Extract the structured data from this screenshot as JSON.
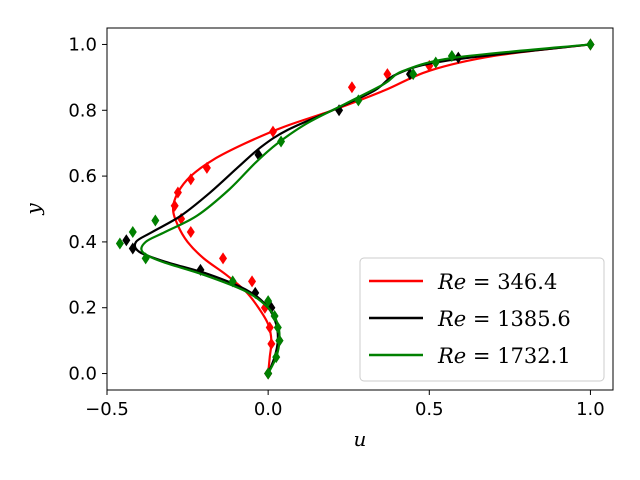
{
  "chart_data": {
    "type": "line",
    "xlabel": "u",
    "ylabel": "y",
    "xlim": [
      -0.5,
      1.07
    ],
    "ylim": [
      -0.05,
      1.05
    ],
    "xticks": [
      -0.5,
      0.0,
      0.5,
      1.0
    ],
    "xtick_labels": [
      "−0.5",
      "0.0",
      "0.5",
      "1.0"
    ],
    "yticks": [
      0.0,
      0.2,
      0.4,
      0.6,
      0.8,
      1.0
    ],
    "ytick_labels": [
      "0.0",
      "0.2",
      "0.4",
      "0.6",
      "0.8",
      "1.0"
    ],
    "grid": false,
    "legend_position": "lower-right",
    "series": [
      {
        "name": "Re = 346.4",
        "name_italic": "Re",
        "name_rest": " = 346.4",
        "color": "#ff0000",
        "curve": [
          [
            0,
            0
          ],
          [
            0.005,
            0.05
          ],
          [
            0.01,
            0.1
          ],
          [
            0,
            0.15
          ],
          [
            -0.03,
            0.2
          ],
          [
            -0.07,
            0.25
          ],
          [
            -0.13,
            0.3
          ],
          [
            -0.2,
            0.35
          ],
          [
            -0.25,
            0.4
          ],
          [
            -0.28,
            0.45
          ],
          [
            -0.295,
            0.5
          ],
          [
            -0.28,
            0.55
          ],
          [
            -0.24,
            0.6
          ],
          [
            -0.17,
            0.65
          ],
          [
            -0.07,
            0.7
          ],
          [
            0.05,
            0.75
          ],
          [
            0.2,
            0.8
          ],
          [
            0.36,
            0.86
          ],
          [
            0.5,
            0.92
          ],
          [
            0.7,
            0.965
          ],
          [
            1.0,
            1.0
          ]
        ],
        "markers": [
          [
            0.0,
            0.0
          ],
          [
            0.01,
            0.09
          ],
          [
            0.005,
            0.14
          ],
          [
            -0.01,
            0.2
          ],
          [
            -0.05,
            0.28
          ],
          [
            -0.14,
            0.35
          ],
          [
            -0.24,
            0.43
          ],
          [
            -0.27,
            0.47
          ],
          [
            -0.29,
            0.51
          ],
          [
            -0.28,
            0.55
          ],
          [
            -0.24,
            0.59
          ],
          [
            -0.19,
            0.625
          ],
          [
            0.015,
            0.735
          ],
          [
            0.26,
            0.87
          ],
          [
            0.37,
            0.91
          ],
          [
            0.5,
            0.935
          ],
          [
            1.0,
            1.0
          ]
        ]
      },
      {
        "name": "Re = 1385.6",
        "name_italic": "Re",
        "name_rest": " = 1385.6",
        "color": "#000000",
        "curve": [
          [
            0,
            0
          ],
          [
            0.02,
            0.05
          ],
          [
            0.03,
            0.1
          ],
          [
            0.025,
            0.15
          ],
          [
            0,
            0.2
          ],
          [
            -0.06,
            0.25
          ],
          [
            -0.18,
            0.3
          ],
          [
            -0.32,
            0.34
          ],
          [
            -0.4,
            0.37
          ],
          [
            -0.41,
            0.4
          ],
          [
            -0.36,
            0.43
          ],
          [
            -0.27,
            0.48
          ],
          [
            -0.18,
            0.55
          ],
          [
            -0.09,
            0.63
          ],
          [
            -0.02,
            0.69
          ],
          [
            0.06,
            0.74
          ],
          [
            0.2,
            0.8
          ],
          [
            0.33,
            0.86
          ],
          [
            0.4,
            0.91
          ],
          [
            0.55,
            0.95
          ],
          [
            1.0,
            1.0
          ]
        ],
        "markers": [
          [
            0.0,
            0.0
          ],
          [
            0.035,
            0.1
          ],
          [
            0.01,
            0.2
          ],
          [
            -0.04,
            0.245
          ],
          [
            -0.21,
            0.315
          ],
          [
            -0.42,
            0.38
          ],
          [
            -0.44,
            0.405
          ],
          [
            -0.03,
            0.665
          ],
          [
            0.22,
            0.8
          ],
          [
            0.44,
            0.91
          ],
          [
            0.59,
            0.96
          ],
          [
            1.0,
            1.0
          ]
        ]
      },
      {
        "name": "Re = 1732.1",
        "name_italic": "Re",
        "name_rest": " = 1732.1",
        "color": "#008000",
        "curve": [
          [
            0,
            0
          ],
          [
            0.025,
            0.05
          ],
          [
            0.035,
            0.1
          ],
          [
            0.03,
            0.15
          ],
          [
            0,
            0.2
          ],
          [
            -0.07,
            0.25
          ],
          [
            -0.2,
            0.3
          ],
          [
            -0.33,
            0.34
          ],
          [
            -0.39,
            0.37
          ],
          [
            -0.38,
            0.4
          ],
          [
            -0.32,
            0.43
          ],
          [
            -0.22,
            0.48
          ],
          [
            -0.12,
            0.56
          ],
          [
            -0.04,
            0.64
          ],
          [
            0.03,
            0.7
          ],
          [
            0.12,
            0.76
          ],
          [
            0.24,
            0.82
          ],
          [
            0.36,
            0.88
          ],
          [
            0.42,
            0.92
          ],
          [
            0.58,
            0.96
          ],
          [
            1.0,
            1.0
          ]
        ],
        "markers": [
          [
            0.0,
            0.0
          ],
          [
            0.025,
            0.05
          ],
          [
            0.035,
            0.1
          ],
          [
            0.03,
            0.14
          ],
          [
            0.02,
            0.175
          ],
          [
            0.0,
            0.22
          ],
          [
            -0.11,
            0.28
          ],
          [
            -0.38,
            0.35
          ],
          [
            -0.46,
            0.395
          ],
          [
            -0.42,
            0.43
          ],
          [
            -0.35,
            0.465
          ],
          [
            0.04,
            0.705
          ],
          [
            0.28,
            0.83
          ],
          [
            0.45,
            0.91
          ],
          [
            0.52,
            0.945
          ],
          [
            0.57,
            0.965
          ],
          [
            1.0,
            1.0
          ]
        ]
      }
    ]
  }
}
